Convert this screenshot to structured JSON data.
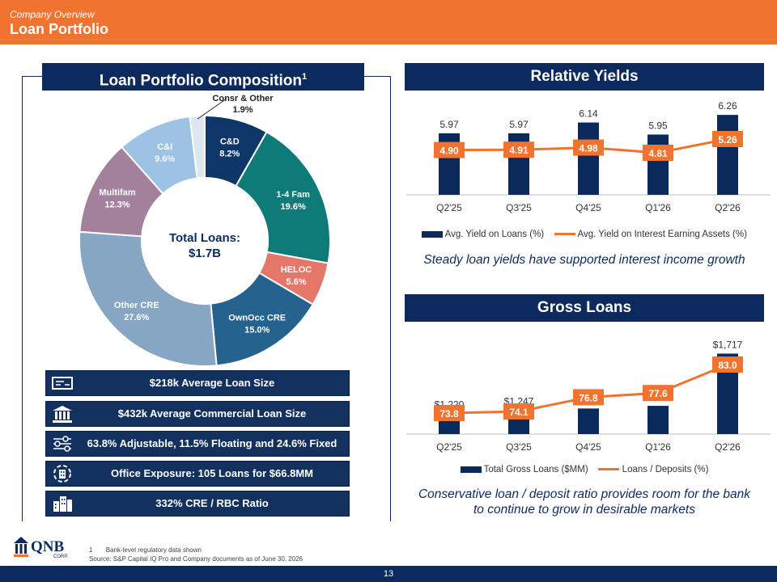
{
  "header": {
    "kicker": "Company Overview",
    "title": "Loan Portfolio"
  },
  "left_panel": {
    "title": "Loan Portfolio Composition",
    "title_sup": "1",
    "donut_center": {
      "line1": "Total Loans:",
      "line2": "$1.7B"
    }
  },
  "info_bars": [
    {
      "icon": "loan-card-icon",
      "text": "$218k Average Loan Size"
    },
    {
      "icon": "bank-building-icon",
      "text": "$432k Average Commercial Loan Size"
    },
    {
      "icon": "sliders-icon",
      "text": "63.8% Adjustable, 11.5% Floating and 24.6% Fixed"
    },
    {
      "icon": "office-building-icon",
      "text": "Office Exposure: 105 Loans for $66.8MM"
    },
    {
      "icon": "city-buildings-icon",
      "text": "332% CRE / RBC Ratio"
    }
  ],
  "yields_panel": {
    "title": "Relative Yields",
    "note": "Steady loan yields have supported interest income growth"
  },
  "loans_panel": {
    "title": "Gross Loans",
    "note_line1": "Conservative loan / deposit ratio provides room for the bank",
    "note_line2": "to continue to grow in desirable markets"
  },
  "footer": {
    "page_number": "13",
    "footnote_num": "1",
    "footnote_text": "Bank-level regulatory data shown",
    "source": "Source: S&P Capital IQ Pro and Company documents as of June 30, 2026",
    "logo_text": "QNB",
    "logo_sub": "CORP."
  },
  "colors": {
    "navy": "#0d2a5e",
    "orange": "#f0742f",
    "bar": "#0b2a5c"
  },
  "chart_data": [
    {
      "type": "pie",
      "title": "Loan Portfolio Composition",
      "center_label": "Total Loans: $1.7B",
      "slices": [
        {
          "label": "C&D",
          "value": 8.2,
          "display": "8.2%",
          "color": "#0f3668"
        },
        {
          "label": "1-4 Fam",
          "value": 19.6,
          "display": "19.6%",
          "color": "#0e7b79"
        },
        {
          "label": "HELOC",
          "value": 5.6,
          "display": "5.6%",
          "color": "#e4766a"
        },
        {
          "label": "OwnOcc CRE",
          "value": 15.0,
          "display": "15.0%",
          "color": "#26628e"
        },
        {
          "label": "Other CRE",
          "value": 27.6,
          "display": "27.6%",
          "color": "#86a6c4"
        },
        {
          "label": "Multifam",
          "value": 12.3,
          "display": "12.3%",
          "color": "#a3819c"
        },
        {
          "label": "C&I",
          "value": 9.6,
          "display": "9.6%",
          "color": "#9dc2e4"
        },
        {
          "label": "Consr & Other",
          "value": 1.9,
          "display": "1.9%",
          "color": "#dde7ef"
        }
      ]
    },
    {
      "type": "bar",
      "title": "Relative Yields",
      "categories": [
        "Q2'25",
        "Q3'25",
        "Q4'25",
        "Q1'26",
        "Q2'26"
      ],
      "series": [
        {
          "name": "Avg. Yield on Loans (%)",
          "type": "bar",
          "values": [
            5.97,
            5.97,
            6.14,
            5.95,
            6.26
          ],
          "labels": [
            "5.97",
            "5.97",
            "6.14",
            "5.95",
            "6.26"
          ]
        },
        {
          "name": "Avg. Yield on Interest Earning Assets (%)",
          "type": "line",
          "values": [
            4.9,
            4.91,
            4.98,
            4.81,
            5.26
          ],
          "labels": [
            "4.90",
            "4.91",
            "4.98",
            "4.81",
            "5.26"
          ]
        }
      ]
    },
    {
      "type": "bar",
      "title": "Gross Loans",
      "categories": [
        "Q2'25",
        "Q3'25",
        "Q4'25",
        "Q1'26",
        "Q2'26"
      ],
      "series": [
        {
          "name": "Total Gross Loans ($MM)",
          "type": "bar",
          "values": [
            1220,
            1247,
            1262,
            1284,
            1717
          ],
          "labels": [
            "$1,220",
            "$1,247",
            "$1,262",
            "$1,284",
            "$1,717"
          ]
        },
        {
          "name": "Loans / Deposits (%)",
          "type": "line",
          "values": [
            73.8,
            74.1,
            76.8,
            77.6,
            83.0
          ],
          "labels": [
            "73.8",
            "74.1",
            "76.8",
            "77.6",
            "83.0"
          ]
        }
      ]
    }
  ]
}
